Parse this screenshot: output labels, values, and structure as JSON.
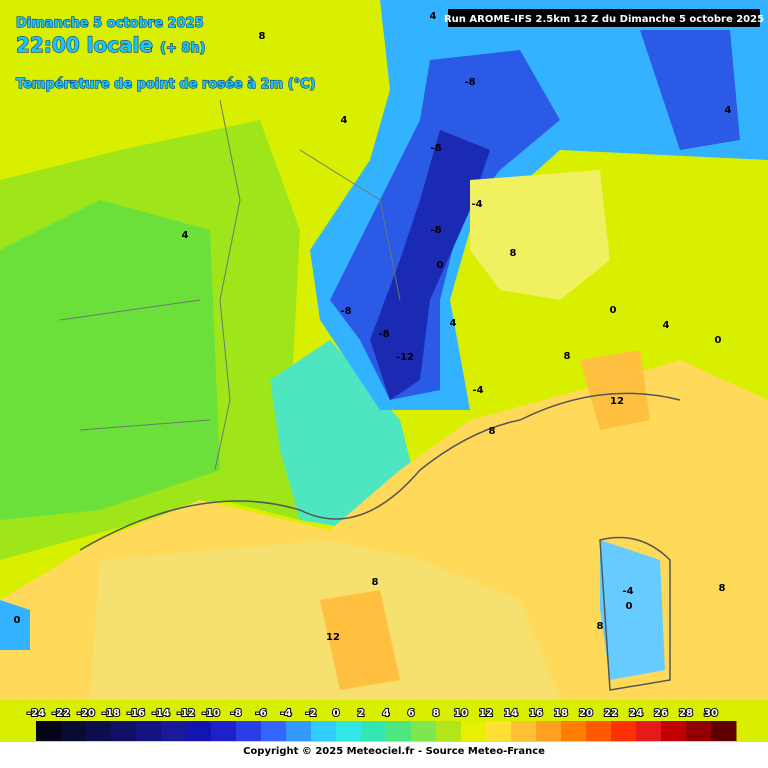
{
  "header": {
    "date": "Dimanche 5 octobre 2025",
    "time": "22:00 locale",
    "lead": "(+ 8h)",
    "variable": "Température de point de rosée à 2m (°C)"
  },
  "run": "Run AROME-IFS 2.5km 12 Z du Dimanche 5 octobre 2025",
  "legend": {
    "labels": [
      -24,
      -22,
      -20,
      -18,
      -16,
      -14,
      -12,
      -10,
      -8,
      -6,
      -4,
      -2,
      0,
      2,
      4,
      6,
      8,
      10,
      12,
      14,
      16,
      18,
      20,
      22,
      24,
      26,
      28,
      30
    ],
    "colors": [
      "#05051a",
      "#0a0a33",
      "#0d0d4d",
      "#101066",
      "#141480",
      "#1a1a99",
      "#1414b3",
      "#1f1fcc",
      "#2b3de6",
      "#3366ff",
      "#3399ff",
      "#33ccff",
      "#33e6e6",
      "#33e6b3",
      "#4de680",
      "#80e64d",
      "#b3e61a",
      "#e6f000",
      "#ffe033",
      "#ffc033",
      "#ffa020",
      "#ff8000",
      "#ff5a00",
      "#ff3000",
      "#e61a1a",
      "#c00000",
      "#900000",
      "#600000"
    ]
  },
  "contours": [
    "4",
    "8",
    "4",
    "4",
    "-8",
    "-8",
    "-8",
    "-8",
    "-4",
    "0",
    "-8",
    "-12",
    "4",
    "-4",
    "8",
    "0",
    "4",
    "0",
    "8",
    "12",
    "8",
    "8",
    "12",
    "0",
    "-4",
    "8",
    "0",
    "8",
    "4"
  ],
  "copyright": "Copyright © 2025 Meteociel.fr - Source Meteo-France"
}
